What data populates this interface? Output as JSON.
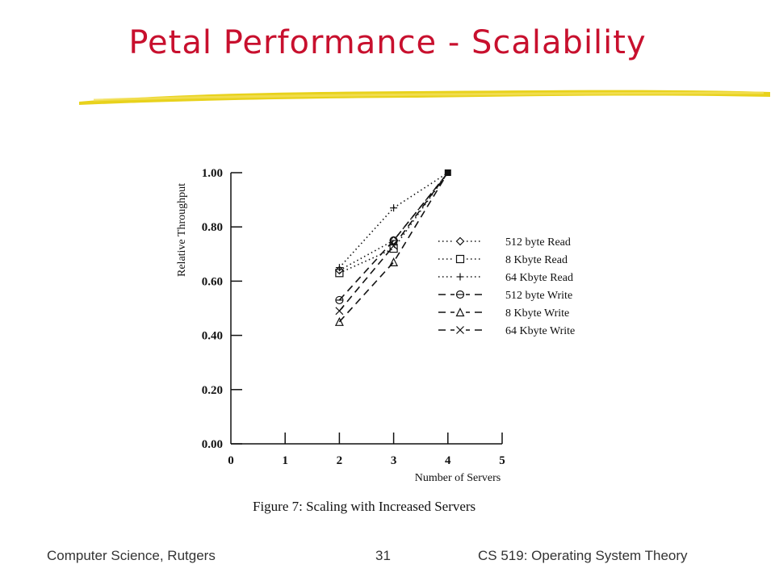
{
  "slide": {
    "title": "Petal Performance - Scalability",
    "footer_left": "Computer Science, Rutgers",
    "page_number": "31",
    "footer_right": "CS 519: Operating System Theory",
    "figure_caption": "Figure 7:  Scaling with Increased Servers",
    "accent_color": "#c8102e",
    "underline_color": "#e8d21c"
  },
  "chart_data": {
    "type": "line",
    "xlabel": "Number of Servers",
    "ylabel": "Relative Throughput",
    "xlim": [
      0,
      5
    ],
    "ylim": [
      0,
      1
    ],
    "x_ticks": [
      0,
      1,
      2,
      3,
      4,
      5
    ],
    "x_tick_labels": [
      "0",
      "1",
      "2",
      "3",
      "4",
      "5"
    ],
    "y_ticks": [
      0,
      0.2,
      0.4,
      0.6,
      0.8,
      1.0
    ],
    "y_tick_labels": [
      "0.00",
      "0.20",
      "0.40",
      "0.60",
      "0.80",
      "1.00"
    ],
    "grid": false,
    "legend_position": "right",
    "x": [
      2,
      3,
      4
    ],
    "series": [
      {
        "name": "512 byte Read",
        "values": [
          0.64,
          0.75,
          1.0
        ],
        "line": "dotted",
        "marker": "diamond"
      },
      {
        "name": "8 Kbyte Read",
        "values": [
          0.63,
          0.72,
          1.0
        ],
        "line": "dotted",
        "marker": "square"
      },
      {
        "name": "64 Kbyte Read",
        "values": [
          0.65,
          0.87,
          1.0
        ],
        "line": "dotted",
        "marker": "plus"
      },
      {
        "name": "512 byte Write",
        "values": [
          0.53,
          0.75,
          1.0
        ],
        "line": "dashed",
        "marker": "circle"
      },
      {
        "name": "8 Kbyte Write",
        "values": [
          0.45,
          0.67,
          1.0
        ],
        "line": "dashed",
        "marker": "triangle"
      },
      {
        "name": "64 Kbyte Write",
        "values": [
          0.49,
          0.73,
          1.0
        ],
        "line": "dashed",
        "marker": "x"
      }
    ]
  }
}
